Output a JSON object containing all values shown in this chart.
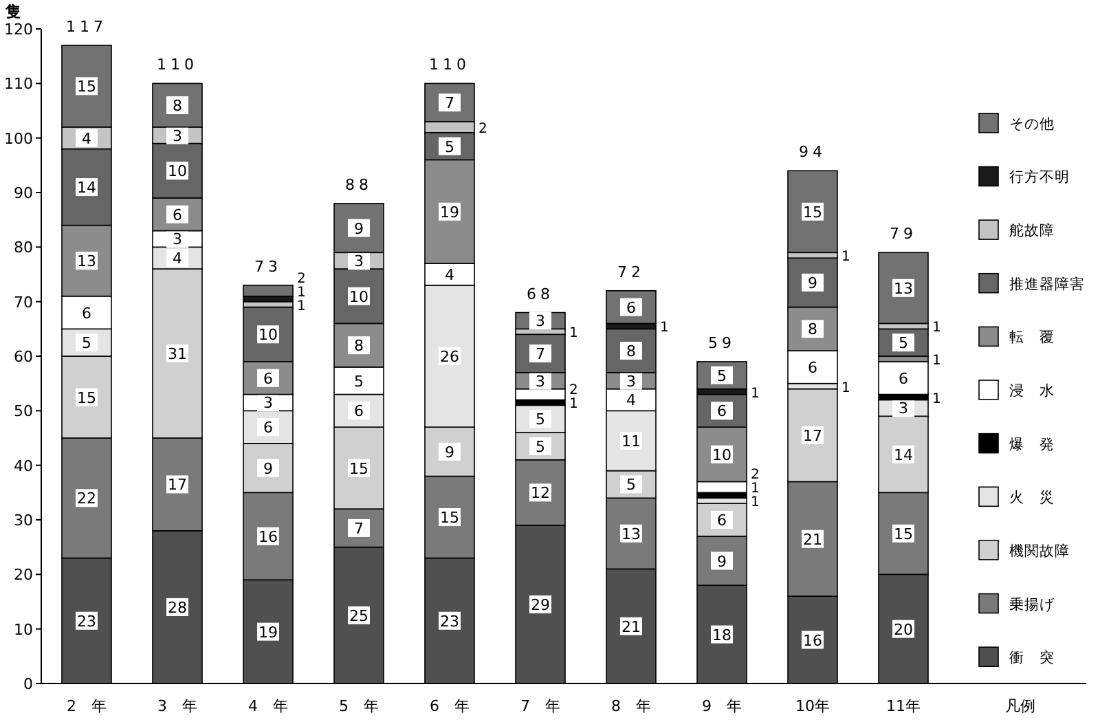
{
  "chart_data": {
    "type": "bar",
    "stacked": true,
    "ylabel": "隻",
    "legend_title": "凡例",
    "legend": "right",
    "data_labels": true,
    "grid": false,
    "categories": [
      "2　年",
      "3　年",
      "4　年",
      "5　年",
      "6　年",
      "7　年",
      "8　年",
      "9　年",
      "10年",
      "11年"
    ],
    "ylim": [
      0,
      120
    ],
    "yticks": [
      0,
      10,
      20,
      30,
      40,
      50,
      60,
      70,
      80,
      90,
      100,
      110,
      120
    ],
    "totals": [
      "117",
      "110",
      "73",
      "88",
      "110",
      "68",
      "72",
      "59",
      "94",
      "79"
    ],
    "series": [
      {
        "name": "衝　突",
        "color": "#505050",
        "values": [
          23,
          28,
          19,
          25,
          23,
          29,
          21,
          18,
          16,
          20
        ]
      },
      {
        "name": "乗揚げ",
        "color": "#7a7a7a",
        "values": [
          22,
          17,
          16,
          7,
          15,
          12,
          13,
          9,
          21,
          15
        ]
      },
      {
        "name": "機関故障",
        "color": "#d0d0d0",
        "values": [
          15,
          31,
          9,
          15,
          9,
          5,
          5,
          6,
          17,
          14
        ]
      },
      {
        "name": "火　災",
        "color": "#e4e4e4",
        "values": [
          5,
          4,
          6,
          6,
          26,
          5,
          11,
          1,
          1,
          3
        ]
      },
      {
        "name": "爆　発",
        "color": "#000000",
        "values": [
          null,
          null,
          null,
          null,
          null,
          1,
          null,
          1,
          null,
          1
        ]
      },
      {
        "name": "浸　水",
        "color": "#ffffff",
        "values": [
          6,
          3,
          3,
          5,
          4,
          2,
          4,
          2,
          6,
          6
        ]
      },
      {
        "name": "転　覆",
        "color": "#8c8c8c",
        "values": [
          13,
          6,
          6,
          8,
          19,
          3,
          3,
          10,
          8,
          1
        ]
      },
      {
        "name": "推進器障害",
        "color": "#666666",
        "values": [
          14,
          10,
          10,
          10,
          5,
          7,
          8,
          6,
          9,
          5
        ]
      },
      {
        "name": "舵故障",
        "color": "#c4c4c4",
        "values": [
          4,
          3,
          1,
          3,
          2,
          1,
          null,
          null,
          1,
          1
        ]
      },
      {
        "name": "行方不明",
        "color": "#1a1a1a",
        "values": [
          null,
          null,
          1,
          null,
          null,
          null,
          1,
          1,
          null,
          null
        ]
      },
      {
        "name": "その他",
        "color": "#727272",
        "values": [
          15,
          8,
          2,
          9,
          7,
          3,
          6,
          5,
          15,
          13
        ]
      }
    ]
  }
}
